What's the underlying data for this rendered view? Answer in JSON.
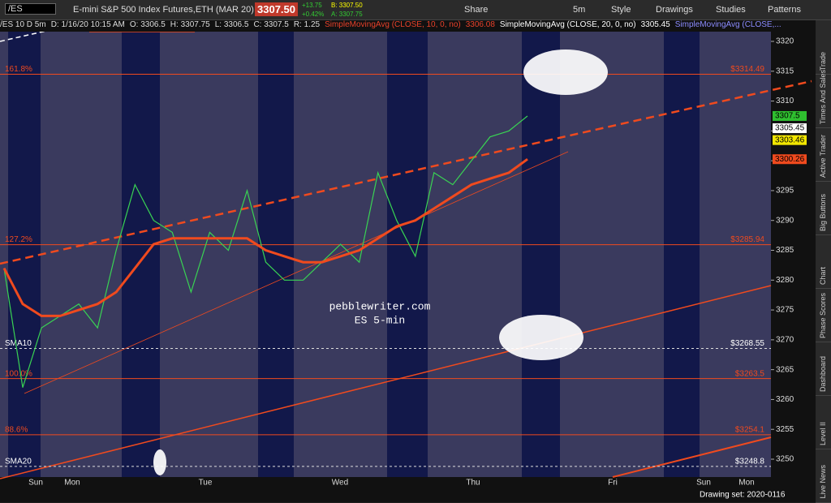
{
  "toolbar": {
    "symbol": "/ES",
    "description": "E-mini S&P 500 Index Futures,ETH (MAR 20)",
    "last": "3307.50",
    "change": "+13.75",
    "change_pct": "+0.42%",
    "bid": "B: 3307.50",
    "ask": "A: 3307.75",
    "buttons": [
      "Share",
      "5m",
      "Style",
      "Drawings",
      "Studies",
      "Patterns"
    ]
  },
  "header": {
    "items": [
      "/ES 10 D 5m",
      "D: 1/16/20 10:15 AM",
      "O: 3306.5",
      "H: 3307.75",
      "L: 3306.5",
      "C: 3307.5",
      "R: 1.25"
    ],
    "studies": [
      {
        "name": "SimpleMovingAvg (CLOSE, 10, 0, no)",
        "value": "3306.08",
        "color": "#e8412a"
      },
      {
        "name": "SimpleMovingAvg (CLOSE, 20, 0, no)",
        "value": "3305.45",
        "color": "#ffffff"
      },
      {
        "name": "SimpleMovingAvg (CLOSE,...",
        "color": "#8c8cff"
      }
    ]
  },
  "chart_data": {
    "type": "line",
    "ylim": [
      3250,
      3320
    ],
    "yticks": [
      3250,
      3255,
      3260,
      3265,
      3270,
      3275,
      3280,
      3285,
      3290,
      3295,
      3300,
      3305,
      3310,
      3315,
      3320
    ],
    "days": [
      "Sun",
      "Mon",
      "Tue",
      "Wed",
      "Thu",
      "Fri",
      "Sun",
      "Mon"
    ],
    "series": [
      {
        "color": "#39d353",
        "values": [
          3282,
          3262,
          3272,
          3274,
          3276,
          3272,
          3285,
          3296,
          3290,
          3288,
          3278,
          3288,
          3285,
          3295,
          3283,
          3280,
          3280,
          3283,
          3286,
          3283,
          3298,
          3290,
          3284,
          3298,
          3296,
          3300,
          3304,
          3305,
          3307.5
        ]
      },
      {
        "color": "#f04a1e",
        "values": [
          3282,
          3276,
          3274,
          3274,
          3275,
          3276,
          3278,
          3282,
          3286,
          3287,
          3287,
          3287,
          3287,
          3287,
          3285,
          3284,
          3283,
          3283,
          3284,
          3285,
          3287,
          3289,
          3290,
          3292,
          3294,
          3296,
          3297,
          3298,
          3300.26
        ]
      }
    ],
    "levels": [
      {
        "label": "161.8%",
        "value": 3314.49,
        "value_label": "$3314.49"
      },
      {
        "label": "127.2%",
        "value": 3285.94,
        "value_label": "$3285.94"
      },
      {
        "label": "SMA10",
        "value": 3268.55,
        "value_label": "$3268.55",
        "dashed": true
      },
      {
        "label": "100.0%",
        "value": 3263.5,
        "value_label": "$3263.5"
      },
      {
        "label": "88.6%",
        "value": 3254.1,
        "value_label": "$3254.1"
      },
      {
        "label": "SMA20",
        "value": 3248.8,
        "value_label": "$3248.8",
        "dashed": true
      }
    ],
    "price_tags": [
      {
        "value": 3307.5,
        "color": "#2fbf2f"
      },
      {
        "value": 3305.45,
        "color": "#ffffff"
      },
      {
        "value": 3303.46,
        "color": "#f2e600"
      },
      {
        "value": 3300.26,
        "color": "#f04a1e"
      }
    ],
    "annotations": [
      "pebblewriter.com",
      "ES 5-min"
    ]
  },
  "sidebar": [
    "Trade",
    "Times And Sales",
    "Active Trader",
    "Big Buttons",
    "Chart",
    "Phase Scores",
    "Dashboard",
    "Level II",
    "Live News"
  ],
  "footer": "Drawing set: 2020-0116"
}
